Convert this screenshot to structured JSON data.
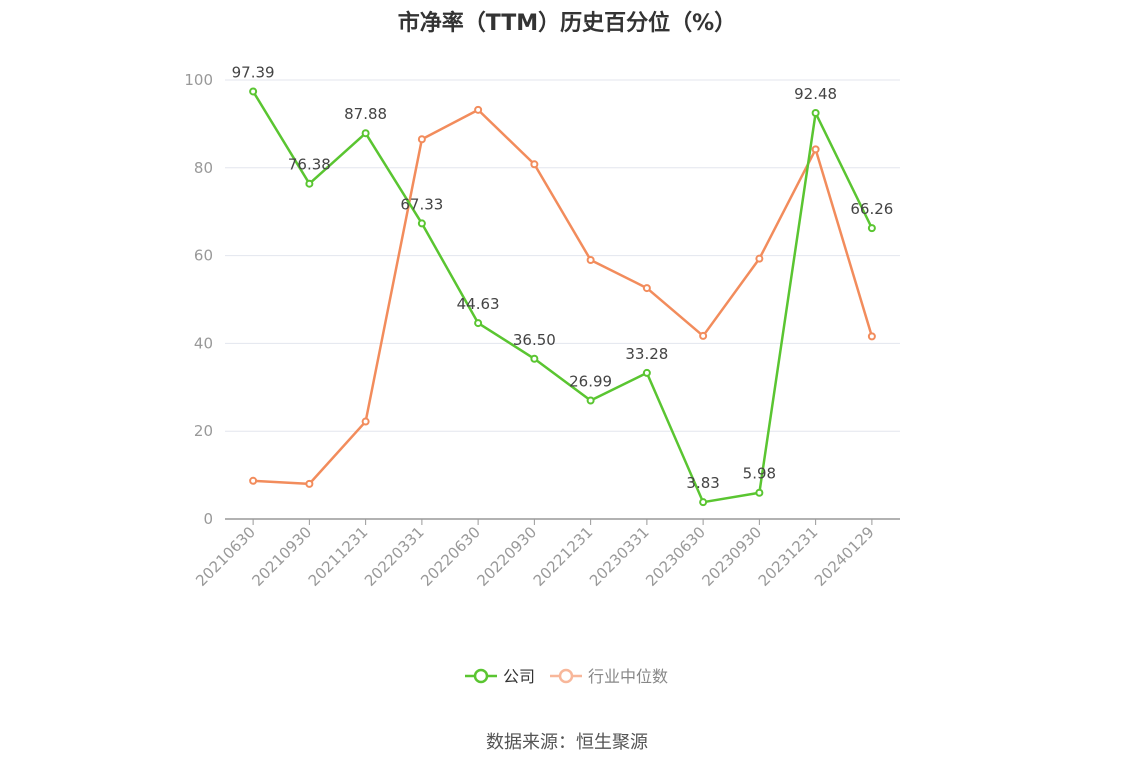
{
  "title": "市净率（TTM）历史百分位（%）",
  "source": "数据来源：恒生聚源",
  "chart_data": {
    "type": "line",
    "categories": [
      "20210630",
      "20210930",
      "20211231",
      "20220331",
      "20220630",
      "20220930",
      "20221231",
      "20230331",
      "20230630",
      "20230930",
      "20231231",
      "20240129"
    ],
    "series": [
      {
        "name": "公司",
        "color": "#5ac531",
        "values": [
          97.39,
          76.38,
          87.88,
          67.33,
          44.63,
          36.5,
          26.99,
          33.28,
          3.83,
          5.98,
          92.48,
          66.26
        ],
        "labels": [
          "97.39",
          "76.38",
          "87.88",
          "67.33",
          "44.63",
          "36.50",
          "26.99",
          "33.28",
          "3.83",
          "5.98",
          "92.48",
          "66.26"
        ]
      },
      {
        "name": "行业中位数",
        "color": "#f28c5c",
        "values": [
          8.7,
          8.0,
          22.2,
          86.5,
          93.2,
          80.8,
          59.0,
          52.6,
          41.7,
          59.3,
          84.2,
          41.6
        ]
      }
    ],
    "ylim": [
      0,
      100
    ],
    "yticks": [
      "0",
      "20",
      "40",
      "60",
      "80",
      "100"
    ],
    "grid": true,
    "legend_position": "bottom-center"
  }
}
